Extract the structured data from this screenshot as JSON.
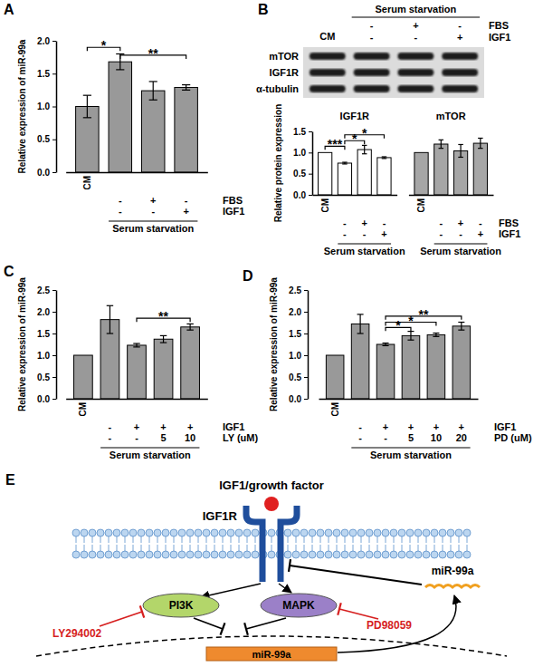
{
  "chart_data": [
    {
      "type": "bar",
      "panel": "A",
      "y_label": "Relative expression of miR-99a",
      "categories": [
        "CM",
        null,
        null,
        null
      ],
      "values": [
        1.0,
        1.68,
        1.24,
        1.29
      ],
      "errors": [
        0.17,
        0.12,
        0.14,
        0.04
      ],
      "color": "#999999",
      "ylim": [
        0,
        2
      ],
      "yticks": [
        {
          "value": 0,
          "label": "0.0"
        },
        0.5,
        {
          "value": 1,
          "label": "1.0"
        },
        1.5,
        {
          "value": 2,
          "label": "2.0"
        }
      ],
      "conditions": [
        {
          "label": "FBS",
          "values": [
            null,
            "-",
            "+",
            "-"
          ]
        },
        {
          "label": "IGF1",
          "values": [
            null,
            "-",
            "-",
            "+"
          ]
        }
      ],
      "group_label": "Serum starvation",
      "annotations": [
        {
          "text": "*",
          "from": 0,
          "to": 1,
          "y": 1.9
        },
        {
          "text": "**",
          "from": 1,
          "to": 3,
          "y": 1.78
        }
      ]
    },
    {
      "type": "bar",
      "y_label": "Relative protein expression",
      "categories": [
        "CM",
        null,
        null,
        null
      ],
      "series": [
        {
          "name": "IGF1R",
          "color": "#ffffff",
          "values": [
            1.0,
            0.75,
            1.07,
            0.88
          ],
          "errors": [
            null,
            0.02,
            0.1,
            0.02
          ]
        },
        {
          "name": "mTOR",
          "color": "#a6a6a6",
          "values": [
            1.0,
            1.2,
            1.04,
            1.22
          ],
          "errors": [
            null,
            0.1,
            0.15,
            0.12
          ]
        }
      ],
      "ylim": [
        0,
        1.5
      ],
      "yticks": [
        {
          "value": 0,
          "label": "0.0"
        },
        0.5,
        {
          "value": 1,
          "label": "1.0"
        },
        1.5
      ],
      "conditions": [
        {
          "label": "FBS",
          "values": [
            null,
            "-",
            "+",
            "-"
          ]
        },
        {
          "label": "IGF1",
          "values": [
            null,
            "-",
            "-",
            "+"
          ]
        }
      ],
      "group_label": "Serum starvation",
      "annotations": [
        {
          "text": "***",
          "series": 0,
          "from": 0,
          "to": 1,
          "y": 1.15
        },
        {
          "text": "*",
          "series": 0,
          "from": 1,
          "to": 2,
          "y": 1.28
        },
        {
          "text": "*",
          "series": 0,
          "from": 1,
          "to": 3,
          "y": 1.42
        }
      ]
    },
    {
      "type": "bar",
      "panel": "C",
      "y_label": "Relative expression of miR-99a",
      "categories": [
        "CM",
        null,
        null,
        null,
        null
      ],
      "values": [
        1.0,
        1.82,
        1.23,
        1.37,
        1.65
      ],
      "errors": [
        null,
        0.32,
        0.04,
        0.08,
        0.07
      ],
      "color": "#999999",
      "ylim": [
        0,
        2.5
      ],
      "yticks": [
        {
          "value": 0,
          "label": "0.0"
        },
        0.5,
        {
          "value": 1,
          "label": "1.0"
        },
        1.5,
        {
          "value": 2,
          "label": "2.0"
        },
        2.5
      ],
      "conditions": [
        {
          "label": "IGF1",
          "values": [
            null,
            "-",
            "+",
            "+",
            "+"
          ]
        },
        {
          "label": "LY (uM)",
          "values": [
            null,
            "-",
            "-",
            "5",
            "10"
          ]
        }
      ],
      "group_label": "Serum starvation",
      "annotations": [
        {
          "text": "**",
          "from": 2,
          "to": 4,
          "y": 1.85
        }
      ]
    },
    {
      "type": "bar",
      "panel": "D",
      "y_label": "Relative expression of miR-99a",
      "categories": [
        "CM",
        null,
        null,
        null,
        null,
        null
      ],
      "values": [
        1.0,
        1.72,
        1.25,
        1.45,
        1.47,
        1.67
      ],
      "errors": [
        null,
        0.22,
        0.03,
        0.1,
        0.04,
        0.09
      ],
      "color": "#999999",
      "ylim": [
        0,
        2.5
      ],
      "yticks": [
        {
          "value": 0,
          "label": "0.0"
        },
        0.5,
        {
          "value": 1,
          "label": "1.0"
        },
        1.5,
        {
          "value": 2,
          "label": "2.0"
        },
        2.5
      ],
      "conditions": [
        {
          "label": "IGF1",
          "values": [
            null,
            "-",
            "+",
            "+",
            "+",
            "+"
          ]
        },
        {
          "label": "PD (uM)",
          "values": [
            null,
            "-",
            "-",
            "5",
            "10",
            "20"
          ]
        }
      ],
      "group_label": "Serum starvation",
      "annotations": [
        {
          "text": "*",
          "from": 2,
          "to": 3,
          "y": 1.64
        },
        {
          "text": "*",
          "from": 2,
          "to": 4,
          "y": 1.76
        },
        {
          "text": "**",
          "from": 2,
          "to": 5,
          "y": 1.9
        }
      ]
    }
  ],
  "blot": {
    "panel": "B",
    "group_label": "Serum starvation",
    "lanes": [
      "CM",
      null,
      null,
      null
    ],
    "conditions": [
      {
        "label": "FBS",
        "values": [
          null,
          "-",
          "+",
          "-"
        ]
      },
      {
        "label": "IGF1",
        "values": [
          null,
          "-",
          "-",
          "+"
        ]
      }
    ],
    "bands": [
      "mTOR",
      "IGF1R",
      "α-tubulin"
    ]
  },
  "diagram": {
    "panel": "E",
    "ligand": "IGF1/growth factor",
    "receptor": "IGF1R",
    "kinases": [
      "PI3K",
      "MAPK"
    ],
    "inhibitors": [
      "LY294002",
      "PD98059"
    ],
    "mirna": "miR-99a",
    "gene": "miR-99a"
  }
}
